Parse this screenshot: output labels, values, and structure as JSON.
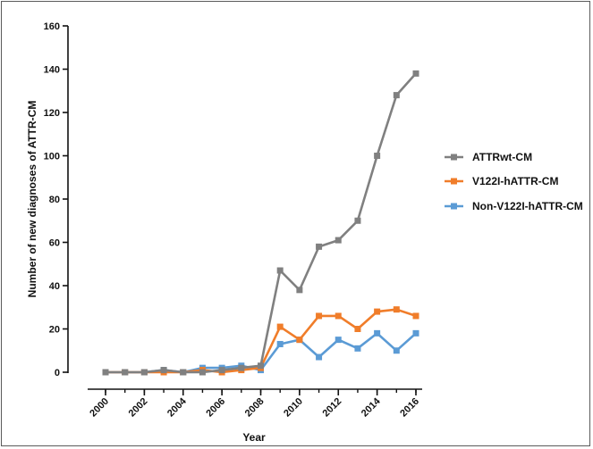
{
  "chart_data": {
    "type": "line",
    "title": "",
    "xlabel": "Year",
    "ylabel": "Number of new diagnoses of ATTR-CM",
    "x": [
      2000,
      2001,
      2002,
      2003,
      2004,
      2005,
      2006,
      2007,
      2008,
      2009,
      2010,
      2011,
      2012,
      2013,
      2014,
      2015,
      2016
    ],
    "xlim": [
      2000,
      2016
    ],
    "ylim": [
      0,
      160
    ],
    "xticks": [
      "2000",
      "2002",
      "2004",
      "2006",
      "2008",
      "2010",
      "2012",
      "2014",
      "2016"
    ],
    "yticks": [
      "0",
      "20",
      "40",
      "60",
      "80",
      "100",
      "120",
      "140",
      "160"
    ],
    "grid": false,
    "legend_position": "right",
    "series": [
      {
        "name": "ATTRwt-CM",
        "color": "#808080",
        "values": [
          0,
          0,
          0,
          1,
          0,
          0,
          1,
          2,
          3,
          47,
          38,
          58,
          61,
          70,
          100,
          128,
          138
        ]
      },
      {
        "name": "V122I-hATTR-CM",
        "color": "#f07d2a",
        "values": [
          0,
          0,
          0,
          0,
          0,
          1,
          0,
          1,
          2,
          21,
          15,
          26,
          26,
          20,
          28,
          29,
          26
        ]
      },
      {
        "name": "Non-V122I-hATTR-CM",
        "color": "#5b9bd5",
        "values": [
          0,
          0,
          0,
          1,
          0,
          2,
          2,
          3,
          1,
          13,
          15,
          7,
          15,
          11,
          18,
          10,
          18
        ]
      }
    ]
  }
}
